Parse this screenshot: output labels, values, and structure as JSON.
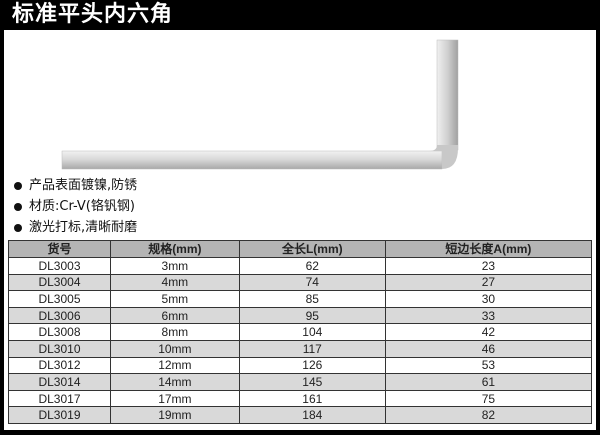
{
  "title": "标准平头内六角",
  "features": [
    "产品表面镀镍,防锈",
    "材质:Cr-V(铬钒钢)",
    "激光打标,清晰耐磨"
  ],
  "table": {
    "headers": [
      "货号",
      "规格(mm)",
      "全长L(mm)",
      "短边长度A(mm)"
    ],
    "rows": [
      [
        "DL3003",
        "3mm",
        "62",
        "23"
      ],
      [
        "DL3004",
        "4mm",
        "74",
        "27"
      ],
      [
        "DL3005",
        "5mm",
        "85",
        "30"
      ],
      [
        "DL3006",
        "6mm",
        "95",
        "33"
      ],
      [
        "DL3008",
        "8mm",
        "104",
        "42"
      ],
      [
        "DL3010",
        "10mm",
        "117",
        "46"
      ],
      [
        "DL3012",
        "12mm",
        "126",
        "53"
      ],
      [
        "DL3014",
        "14mm",
        "145",
        "61"
      ],
      [
        "DL3017",
        "17mm",
        "161",
        "75"
      ],
      [
        "DL3019",
        "19mm",
        "184",
        "82"
      ]
    ]
  }
}
